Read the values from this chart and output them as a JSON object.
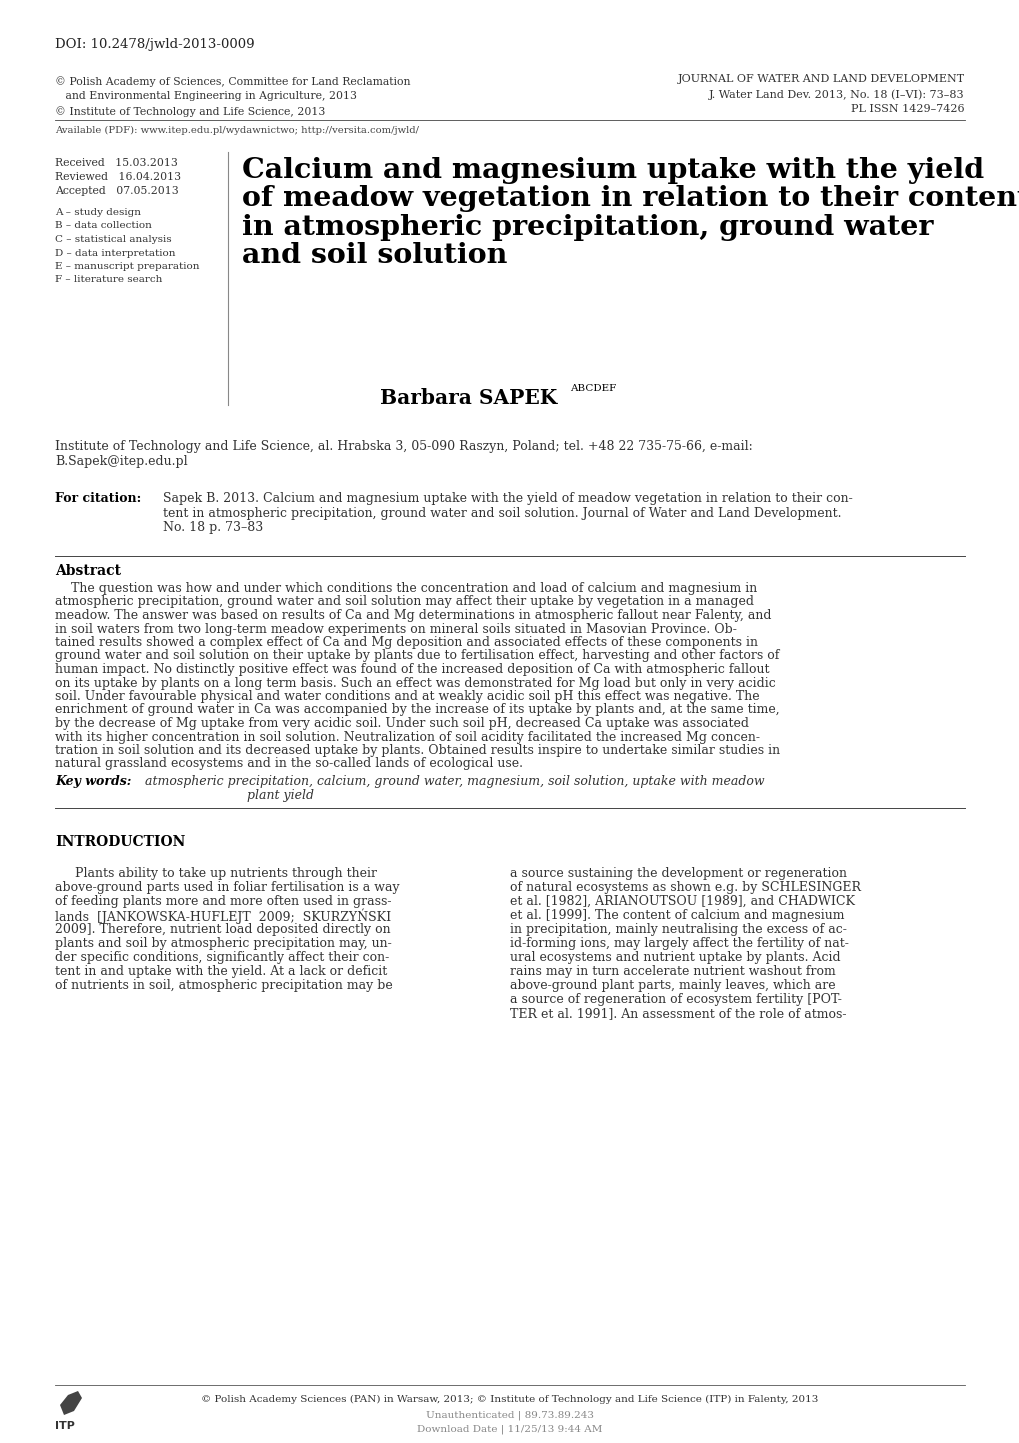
{
  "doi": "DOI: 10.2478/jwld-2013-0009",
  "copyright_left_1": "© Polish Academy of Sciences, Committee for Land Reclamation",
  "copyright_left_2": "   and Environmental Engineering in Agriculture, 2013",
  "copyright_left_3": "© Institute of Technology and Life Science, 2013",
  "journal_right_1": "JOURNAL OF WATER AND LAND DEVELOPMENT",
  "journal_right_2": "J. Water Land Dev. 2013, No. 18 (I–VI): 73–83",
  "journal_right_3": "PL ISSN 1429–7426",
  "available_pdf": "Available (PDF): www.itep.edu.pl/wydawnictwo; http://versita.com/jwld/",
  "received_1": "Received   15.03.2013",
  "received_2": "Reviewed   16.04.2013",
  "received_3": "Accepted   07.05.2013",
  "roles": [
    "A – study design",
    "B – data collection",
    "C – statistical analysis",
    "D – data interpretation",
    "E – manuscript preparation",
    "F – literature search"
  ],
  "main_title_lines": [
    "Calcium and magnesium uptake with the yield",
    "of meadow vegetation in relation to their content",
    "in atmospheric precipitation, ground water",
    "and soil solution"
  ],
  "author": "Barbara SAPEK",
  "author_superscript": "ABCDEF",
  "affiliation_1": "Institute of Technology and Life Science, al. Hrabska 3, 05-090 Raszyn, Poland; tel. +48 22 735-75-66, e-mail:",
  "affiliation_2": "B.Sapek@itep.edu.pl",
  "for_citation_label": "For citation:",
  "for_citation_lines": [
    "Sapek B. 2013. Calcium and magnesium uptake with the yield of meadow vegetation in relation to their con-",
    "tent in atmospheric precipitation, ground water and soil solution. Journal of Water and Land Development.",
    "No. 18 p. 73–83"
  ],
  "abstract_title": "Abstract",
  "abstract_indent": "    The question was how and under which conditions the concentration and load of calcium and magnesium in",
  "abstract_lines": [
    "atmospheric precipitation, ground water and soil solution may affect their uptake by vegetation in a managed",
    "meadow. The answer was based on results of Ca and Mg determinations in atmospheric fallout near Falenty, and",
    "in soil waters from two long-term meadow experiments on mineral soils situated in Masovian Province. Ob-",
    "tained results showed a complex effect of Ca and Mg deposition and associated effects of these components in",
    "ground water and soil solution on their uptake by plants due to fertilisation effect, harvesting and other factors of",
    "human impact. No distinctly positive effect was found of the increased deposition of Ca with atmospheric fallout",
    "on its uptake by plants on a long term basis. Such an effect was demonstrated for Mg load but only in very acidic",
    "soil. Under favourable physical and water conditions and at weakly acidic soil pH this effect was negative. The",
    "enrichment of ground water in Ca was accompanied by the increase of its uptake by plants and, at the same time,",
    "by the decrease of Mg uptake from very acidic soil. Under such soil pH, decreased Ca uptake was associated",
    "with its higher concentration in soil solution. Neutralization of soil acidity facilitated the increased Mg concen-",
    "tration in soil solution and its decreased uptake by plants. Obtained results inspire to undertake similar studies in",
    "natural grassland ecosystems and in the so-called lands of ecological use."
  ],
  "keywords_label": "Key words:",
  "keywords_line1": "atmospheric precipitation, calcium, ground water, magnesium, soil solution, uptake with meadow",
  "keywords_line2": "plant yield",
  "intro_title": "INTRODUCTION",
  "intro_col1_lines": [
    "     Plants ability to take up nutrients through their",
    "above-ground parts used in foliar fertilisation is a way",
    "of feeding plants more and more often used in grass-",
    "lands  [JANKOWSKA-HUFLEJT  2009;  SKURZYŃSKI",
    "2009]. Therefore, nutrient load deposited directly on",
    "plants and soil by atmospheric precipitation may, un-",
    "der specific conditions, significantly affect their con-",
    "tent in and uptake with the yield. At a lack or deficit",
    "of nutrients in soil, atmospheric precipitation may be"
  ],
  "intro_col2_lines": [
    "a source sustaining the development or regeneration",
    "of natural ecosystems as shown e.g. by SCHLESINGER",
    "et al. [1982], ARIANOUTSOU [1989], and CHADWICK",
    "et al. [1999]. The content of calcium and magnesium",
    "in precipitation, mainly neutralising the excess of ac-",
    "id-forming ions, may largely affect the fertility of nat-",
    "ural ecosystems and nutrient uptake by plants. Acid",
    "rains may in turn accelerate nutrient washout from",
    "above-ground plant parts, mainly leaves, which are",
    "a source of regeneration of ecosystem fertility [POT-",
    "TER et al. 1991]. An assessment of the role of atmos-"
  ],
  "footer_text": "© Polish Academy Sciences (PAN) in Warsaw, 2013; © Institute of Technology and Life Science (ITP) in Falenty, 2013",
  "footer_unauth": "Unauthenticated | 89.73.89.243",
  "footer_download": "Download Date | 11/25/13 9:44 AM",
  "bg_color": "#ffffff",
  "text_color": "#000000"
}
